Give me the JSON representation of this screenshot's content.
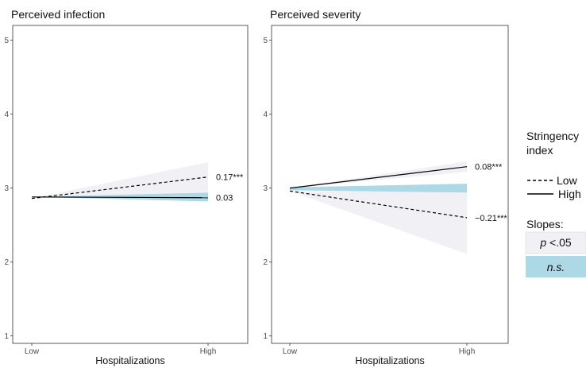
{
  "chart_data": {
    "type": "line",
    "x_categories": [
      "Low",
      "High"
    ],
    "xlabel": "Hospitalizations",
    "ylim": [
      0.9,
      5.2
    ],
    "y_ticks": [
      1,
      2,
      3,
      4,
      5
    ],
    "grid": false,
    "legend_placement": "right",
    "panels": [
      {
        "title": "Perceived infection",
        "series": [
          {
            "name": "Low",
            "linestyle": "dashed",
            "values": [
              2.86,
              3.15
            ],
            "slope_label": "0.17***",
            "significant": true,
            "band_low": [
              2.86,
              2.95
            ],
            "band_high": [
              2.86,
              3.35
            ]
          },
          {
            "name": "High",
            "linestyle": "solid",
            "values": [
              2.88,
              2.87
            ],
            "slope_label": "0.03",
            "significant": false,
            "band_low": [
              2.88,
              2.82
            ],
            "band_high": [
              2.88,
              2.94
            ]
          }
        ]
      },
      {
        "title": "Perceived severity",
        "series": [
          {
            "name": "High",
            "linestyle": "solid",
            "values": [
              3.0,
              3.29
            ],
            "slope_label": "0.08***",
            "significant": true,
            "band_low": [
              3.0,
              3.22
            ],
            "band_high": [
              3.0,
              3.36
            ]
          },
          {
            "name": "Low",
            "linestyle": "dashed",
            "values": [
              2.96,
              2.6
            ],
            "slope_label": "−0.21***",
            "significant": true,
            "band_low": [
              2.96,
              2.11
            ],
            "band_high": [
              2.96,
              2.95
            ]
          },
          {
            "name": "n.s. region",
            "linestyle": "none",
            "values": [],
            "significant": false,
            "band_low": [
              2.97,
              2.94
            ],
            "band_high": [
              3.01,
              3.06
            ]
          }
        ]
      }
    ],
    "legend": {
      "title_line1": "Stringency",
      "title_line2": "index",
      "items": [
        {
          "label": "Low",
          "linestyle": "dashed"
        },
        {
          "label": "High",
          "linestyle": "solid"
        }
      ],
      "slopes_title": "Slopes:",
      "slopes": [
        {
          "label": "p <.05",
          "fill": "#f0f0f5"
        },
        {
          "label": "n.s.",
          "fill": "#add8e6"
        }
      ]
    }
  },
  "colors": {
    "significant_band": "#f0f0f5",
    "ns_band": "#add8e6",
    "line": "#000000",
    "axis": "#333333"
  }
}
